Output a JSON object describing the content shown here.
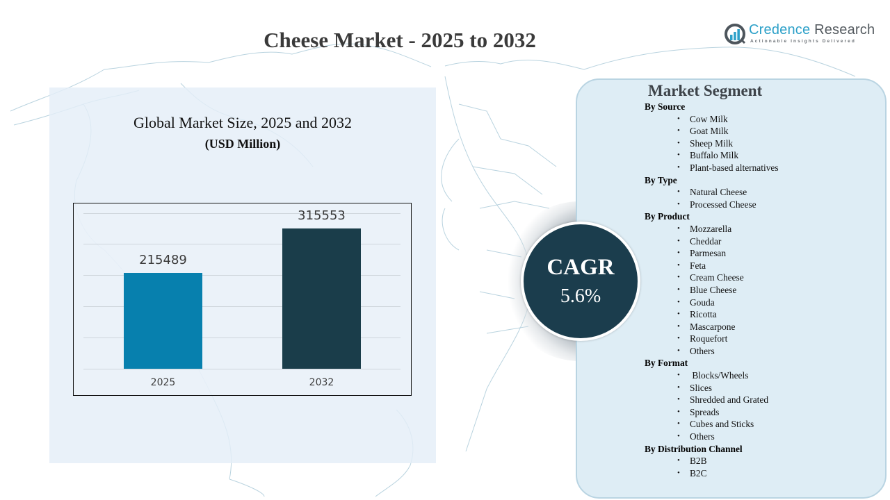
{
  "header": {
    "title": "Cheese Market - 2025 to 2032"
  },
  "logo": {
    "name_part1": "Credence",
    "name_part2": " Research",
    "tagline": "Actionable Insights Delivered",
    "icon": "bar-chart-ring-icon"
  },
  "chart_panel": {
    "title": "Global Market Size, 2025 and 2032",
    "subtitle": "(USD Million)"
  },
  "chart_data": {
    "type": "bar",
    "title": "Global Market Size, 2025 and 2032",
    "subtitle": "(USD Million)",
    "categories": [
      "2025",
      "2032"
    ],
    "values": [
      215489,
      315553
    ],
    "value_labels": [
      "215489",
      "315553"
    ],
    "colors": [
      "#0780AE",
      "#1A3D4A"
    ],
    "xlabel": "",
    "ylabel": "USD Million",
    "ylim": [
      0,
      350000
    ],
    "grid": true,
    "legend": "none"
  },
  "cagr": {
    "label": "CAGR",
    "value": "5.6%",
    "color": "#1B3D4D"
  },
  "segments": {
    "title": "Market Segment",
    "groups": [
      {
        "heading": "By Source",
        "items": [
          "Cow Milk",
          "Goat Milk",
          "Sheep Milk",
          "Buffalo Milk",
          "Plant-based alternatives"
        ]
      },
      {
        "heading": "By Type",
        "items": [
          "Natural Cheese",
          "Processed Cheese"
        ]
      },
      {
        "heading": "By Product",
        "items": [
          "Mozzarella",
          "Cheddar",
          "Parmesan",
          "Feta",
          "Cream Cheese",
          "Blue Cheese",
          "Gouda",
          "Ricotta",
          "Mascarpone",
          "Roquefort",
          "Others"
        ]
      },
      {
        "heading": "By Format",
        "items": [
          " Blocks/Wheels",
          "Slices",
          "Shredded and Grated",
          "Spreads",
          "Cubes and Sticks",
          "Others"
        ]
      },
      {
        "heading": "By Distribution Channel",
        "items": [
          "B2B",
          "B2C"
        ]
      }
    ]
  },
  "theme": {
    "panel_bg": "#E4EEF8",
    "segment_bg": "#DEEDF5",
    "segment_border": "#B9D4E2",
    "title_color": "#3A3A3A",
    "brand_blue": "#2CA0C8"
  }
}
